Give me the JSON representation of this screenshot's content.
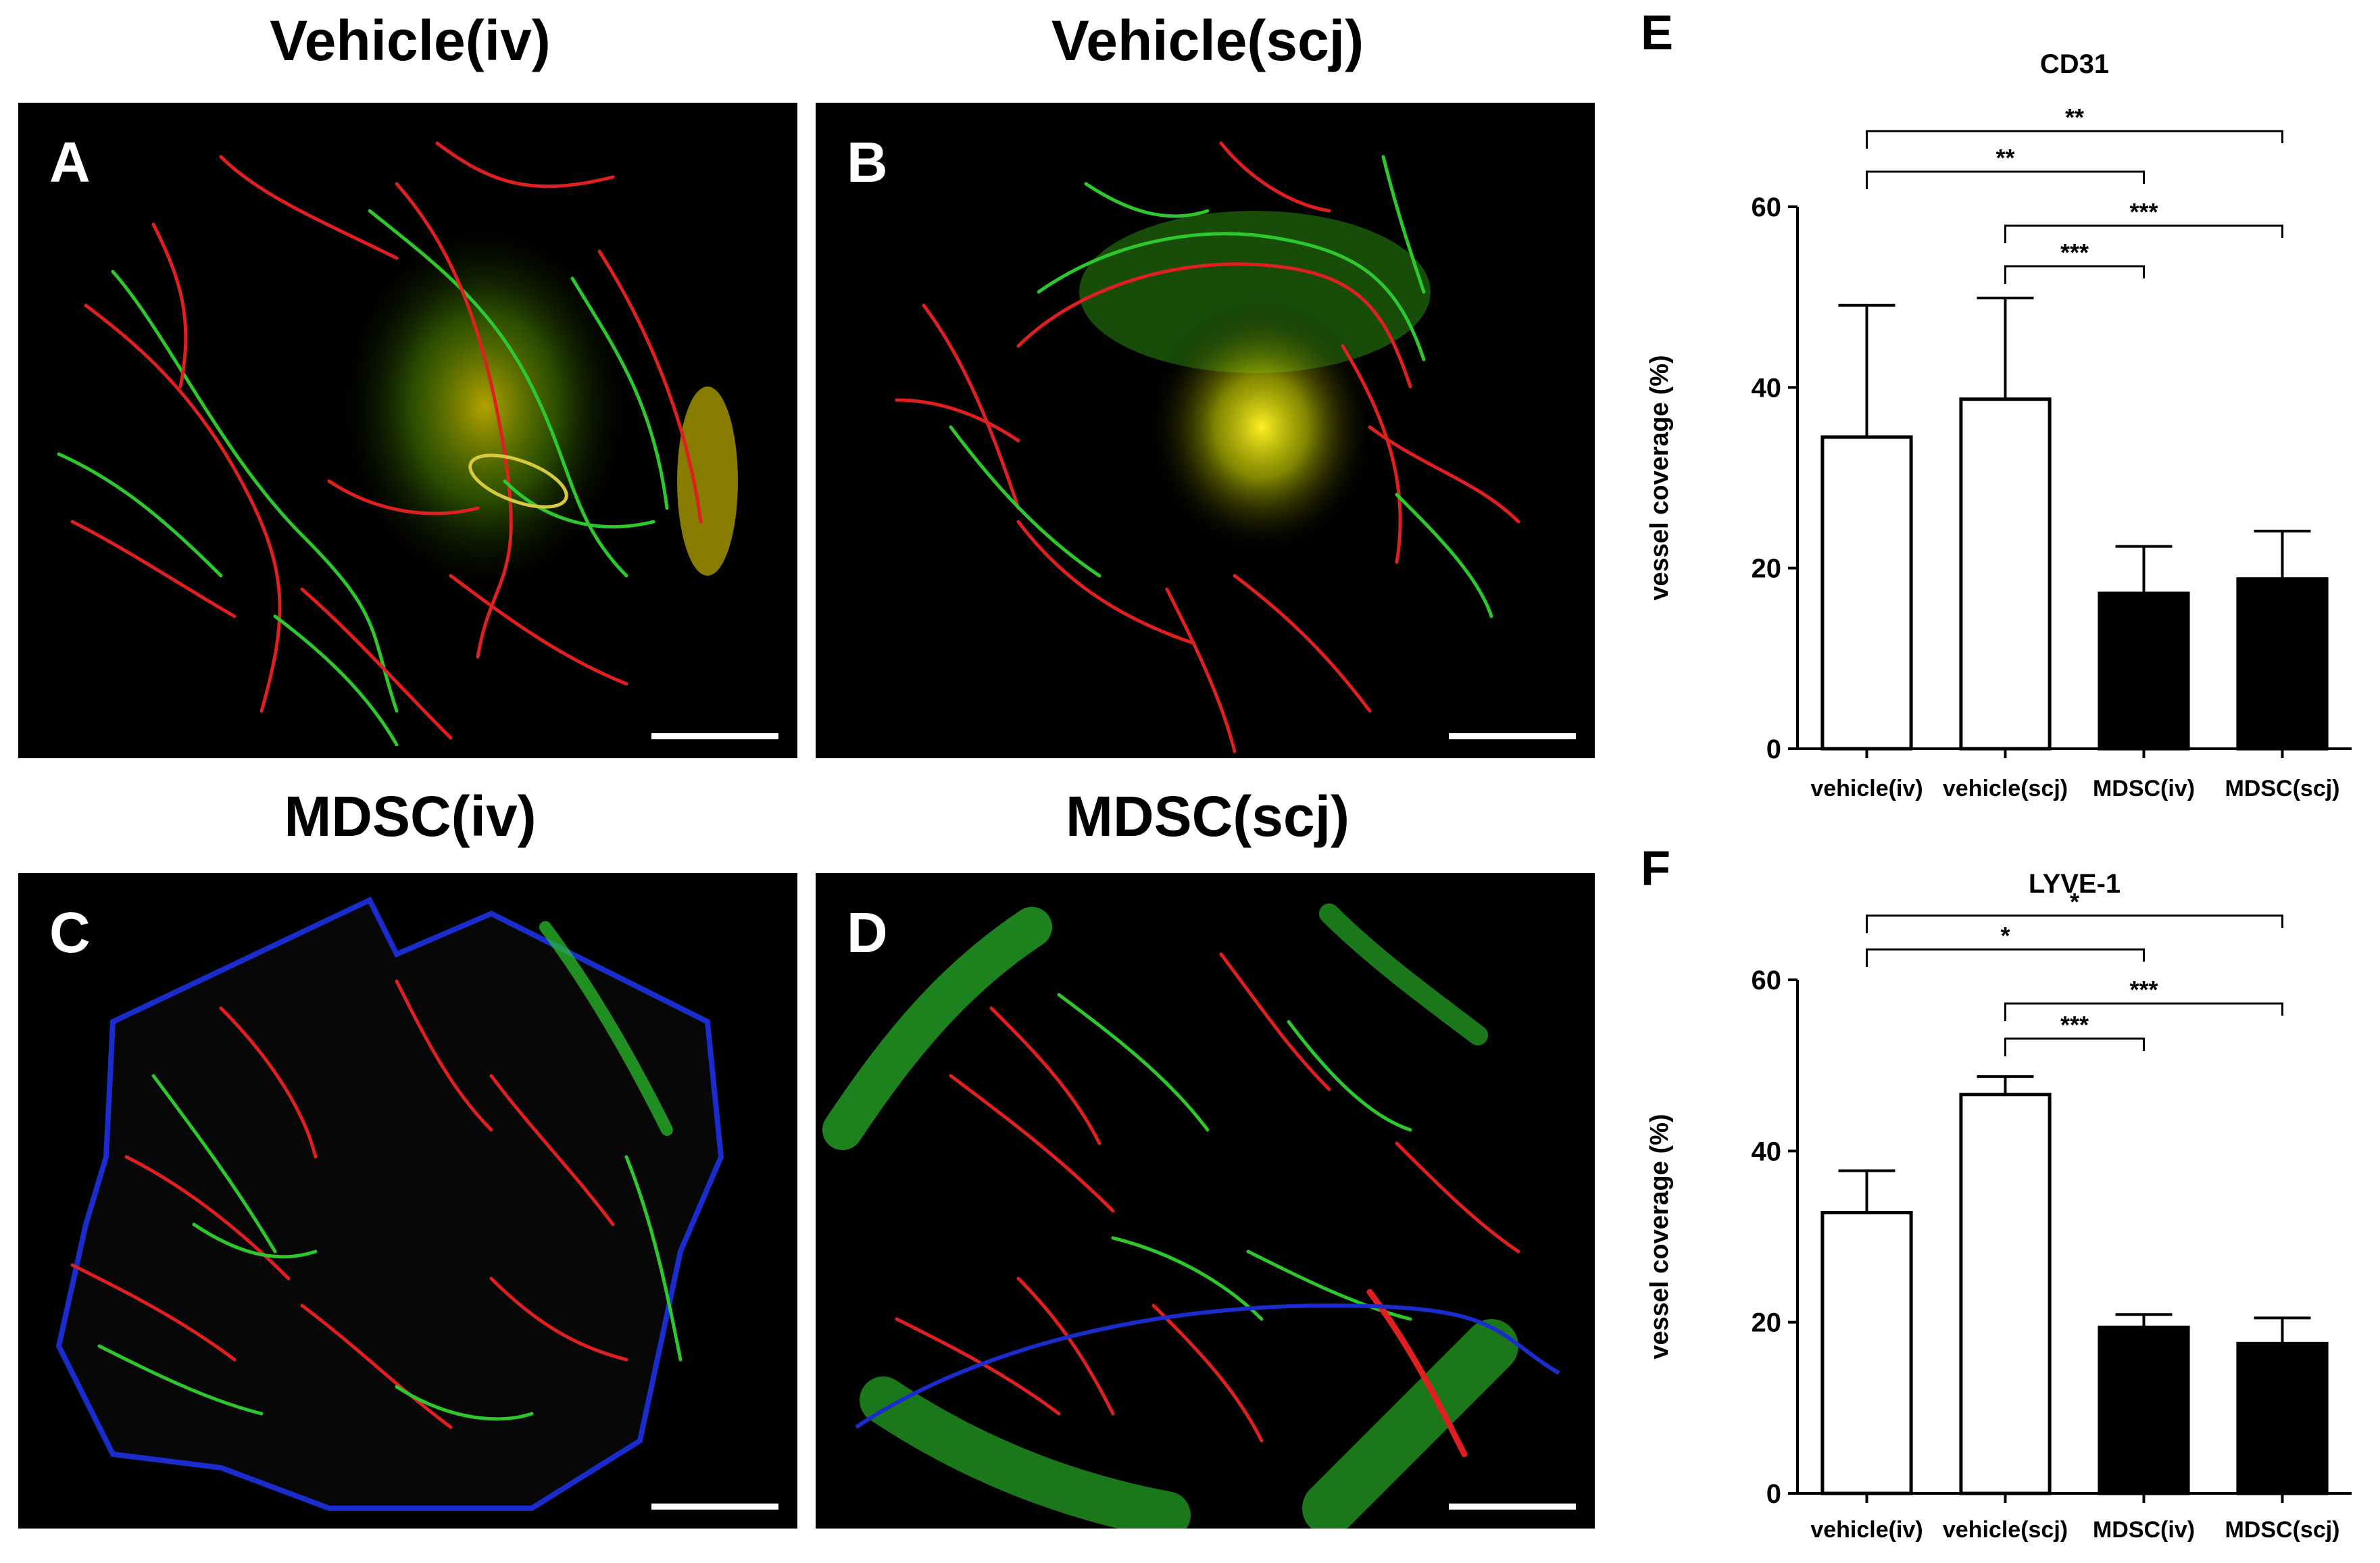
{
  "micrographs": [
    {
      "title": "Vehicle(iv)",
      "letter": "A"
    },
    {
      "title": "Vehicle(scj)",
      "letter": "B"
    },
    {
      "title": "MDSC(iv)",
      "letter": "C"
    },
    {
      "title": "MDSC(scj)",
      "letter": "D"
    }
  ],
  "chart_data": [
    {
      "type": "bar",
      "panel": "E",
      "title": "CD31",
      "ylabel": "vessel coverage (%)",
      "ylim": [
        0,
        60
      ],
      "yticks": [
        0,
        20,
        40,
        60
      ],
      "categories": [
        "vehicle(iv)",
        "vehicle(scj)",
        "MDSC(iv)",
        "MDSC(scj)"
      ],
      "values": [
        34.5,
        38.7,
        17.2,
        18.8
      ],
      "errors": [
        14.6,
        11.2,
        5.2,
        5.3
      ],
      "fills": [
        "#ffffff",
        "#ffffff",
        "#000000",
        "#000000"
      ],
      "significance": [
        {
          "from": 0,
          "to": 3,
          "label": "**"
        },
        {
          "from": 0,
          "to": 2,
          "label": "**"
        },
        {
          "from": 1,
          "to": 3,
          "label": "***"
        },
        {
          "from": 1,
          "to": 2,
          "label": "***"
        }
      ]
    },
    {
      "type": "bar",
      "panel": "F",
      "title": "LYVE-1",
      "ylabel": "vessel coverage (%)",
      "ylim": [
        0,
        60
      ],
      "yticks": [
        0,
        20,
        40,
        60
      ],
      "categories": [
        "vehicle(iv)",
        "vehicle(scj)",
        "MDSC(iv)",
        "MDSC(scj)"
      ],
      "values": [
        32.8,
        46.6,
        19.4,
        17.5
      ],
      "errors": [
        4.9,
        2.1,
        1.5,
        3.0
      ],
      "fills": [
        "#ffffff",
        "#ffffff",
        "#000000",
        "#000000"
      ],
      "significance": [
        {
          "from": 0,
          "to": 3,
          "label": "*"
        },
        {
          "from": 0,
          "to": 2,
          "label": "*"
        },
        {
          "from": 1,
          "to": 3,
          "label": "***"
        },
        {
          "from": 1,
          "to": 2,
          "label": "***"
        }
      ]
    }
  ]
}
